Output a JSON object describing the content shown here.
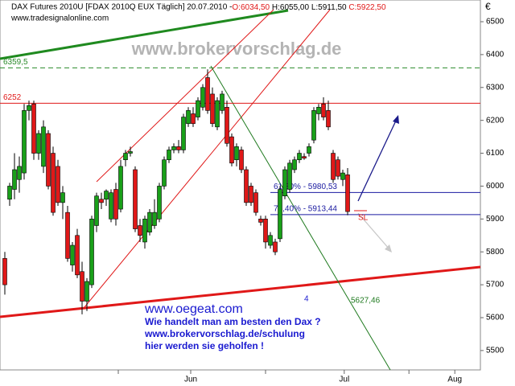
{
  "chart_data": {
    "type": "candlestick",
    "header": "DAX Futures 2010U [FDAX 2010Q EUX  Täglich] 20.07.2010 -",
    "header_values": [
      "O:6034,50",
      "H:6055,00",
      "L:5911,50",
      "C:5922,50"
    ],
    "source": "www.tradesignalonline.com",
    "watermark": "www.brokervorschlag.de",
    "currency": "€",
    "up_color": "#19a019",
    "down_color": "#e01818",
    "x": [
      1,
      2,
      3,
      4,
      5,
      6,
      7,
      8,
      9,
      10,
      11,
      12,
      13,
      14,
      15,
      16,
      17,
      18,
      19,
      20,
      21,
      22,
      23,
      24,
      25,
      26,
      27,
      28,
      29,
      30,
      31,
      32,
      33,
      34,
      35,
      36,
      37,
      38,
      39,
      40,
      41,
      42,
      43,
      44,
      45,
      46,
      47,
      48,
      49,
      50,
      51,
      52,
      53,
      54,
      55,
      56,
      57,
      58,
      59,
      60,
      61,
      62,
      63,
      64,
      65,
      66,
      67,
      68,
      69,
      70,
      71,
      72
    ],
    "open": [
      5780,
      5960,
      5990,
      6020,
      6040,
      6230,
      6250,
      6100,
      6060,
      6160,
      6100,
      6060,
      5950,
      5920,
      5760,
      5850,
      5740,
      5650,
      5700,
      5880,
      5960,
      5960,
      5900,
      5990,
      5930,
      6080,
      6100,
      6050,
      5880,
      5830,
      5860,
      5880,
      5900,
      6000,
      6080,
      6110,
      6120,
      6110,
      6190,
      6220,
      6210,
      6240,
      6330,
      6280,
      6180,
      6230,
      6240,
      6150,
      6080,
      6110,
      6050,
      6000,
      5980,
      5900,
      5900,
      5820,
      5830,
      5840,
      5970,
      5990,
      6050,
      6080,
      6090,
      6100,
      6140,
      6220,
      6250,
      6230,
      6100,
      6080,
      6020,
      6034.5
    ],
    "high": [
      5800,
      6010,
      6100,
      6090,
      6250,
      6260,
      6260,
      6170,
      6200,
      6170,
      6120,
      6080,
      6000,
      5940,
      5830,
      5870,
      5770,
      5720,
      5910,
      5980,
      5980,
      5990,
      5990,
      6010,
      6080,
      6110,
      6120,
      6060,
      5900,
      5910,
      5930,
      5960,
      6010,
      6090,
      6120,
      6130,
      6140,
      6220,
      6240,
      6240,
      6270,
      6310,
      6355,
      6300,
      6270,
      6290,
      6260,
      6160,
      6130,
      6120,
      6060,
      6010,
      5990,
      5910,
      5910,
      5860,
      5840,
      6000,
      6060,
      6080,
      6090,
      6110,
      6100,
      6130,
      6240,
      6250,
      6270,
      6260,
      6110,
      6090,
      6050,
      6055
    ],
    "low": [
      5670,
      5940,
      5960,
      5980,
      6020,
      6200,
      6080,
      6080,
      6040,
      5990,
      5910,
      5940,
      5900,
      5770,
      5740,
      5720,
      5610,
      5620,
      5690,
      5860,
      5930,
      5940,
      5890,
      5880,
      5920,
      6060,
      6090,
      5860,
      5830,
      5810,
      5850,
      5870,
      5890,
      5990,
      6070,
      6100,
      6100,
      6100,
      6180,
      6180,
      6200,
      6230,
      6220,
      6180,
      6170,
      6220,
      6120,
      6060,
      6060,
      6040,
      5940,
      5940,
      5910,
      5880,
      5810,
      5810,
      5790,
      5830,
      5960,
      5980,
      6040,
      6070,
      6080,
      6090,
      6130,
      6200,
      6200,
      6170,
      6010,
      6020,
      6000,
      5911.5
    ],
    "close": [
      5700,
      6000,
      6050,
      6060,
      6230,
      6245,
      6100,
      6160,
      6180,
      6000,
      5920,
      5950,
      5980,
      5780,
      5820,
      5730,
      5650,
      5710,
      5900,
      5970,
      5950,
      5985,
      5980,
      5900,
      6060,
      6100,
      6105,
      5870,
      5850,
      5900,
      5920,
      5920,
      6000,
      6080,
      6110,
      6120,
      6110,
      6210,
      6230,
      6190,
      6260,
      6300,
      6230,
      6190,
      6260,
      6280,
      6130,
      6070,
      6120,
      6050,
      5950,
      5950,
      5920,
      5890,
      5830,
      5850,
      5800,
      5990,
      6050,
      6070,
      6080,
      6100,
      6085,
      6120,
      6230,
      6240,
      6210,
      6180,
      6020,
      6030,
      6040,
      5922.5
    ],
    "xlim": [
      0,
      99.5
    ],
    "xticks": [
      {
        "value": 39.5,
        "label": "Jun"
      },
      {
        "value": 71.3,
        "label": "Jul"
      },
      {
        "value": 94.2,
        "label": "Aug"
      }
    ],
    "minor_xticks": [
      24.5,
      55,
      84.7
    ],
    "ylim": [
      5441,
      6566
    ],
    "yticks": [
      5500,
      5600,
      5700,
      5800,
      5900,
      6000,
      6100,
      6200,
      6300,
      6400,
      6500
    ],
    "levels": [
      {
        "value": 6359.5,
        "label": "6359,5",
        "color": "#2a8a2a",
        "dash": true,
        "start": 0
      },
      {
        "value": 6252,
        "label": "6252",
        "color": "#e01818",
        "dash": false,
        "start": 0
      },
      {
        "value": 5980.53,
        "label": "61,80% - 5980,53",
        "color": "#1a1aa0",
        "dash": false,
        "start": 56
      },
      {
        "value": 5913.44,
        "label": "76,40% - 5913,44",
        "color": "#1a1aa0",
        "dash": false,
        "start": 56
      }
    ],
    "annotations": {
      "site": "www.oegeat.com",
      "lines": [
        "Wie handelt man am besten den Dax ?",
        "www.brokervorschlag.de/schulung",
        "hier werden sie geholfen !"
      ],
      "wave": "4",
      "target": "5627,46",
      "stop": "SL"
    }
  }
}
